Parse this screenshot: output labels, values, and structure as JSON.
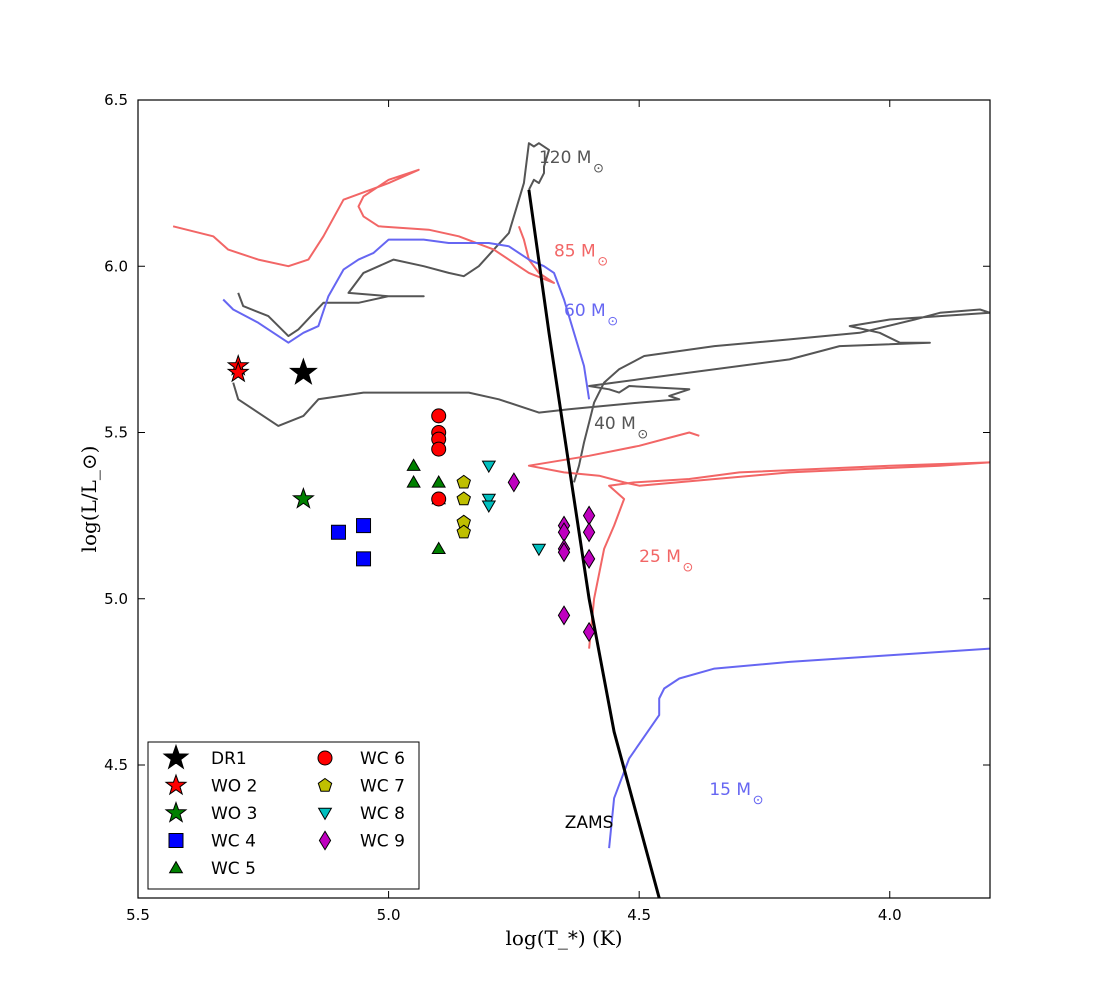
{
  "chart_data": {
    "type": "scatter",
    "title": "",
    "xlabel": "log(T_*) (K)",
    "ylabel": "log(L/L_⊙)",
    "xlim": [
      5.5,
      3.8
    ],
    "ylim": [
      4.1,
      6.5
    ],
    "x_inverted": true,
    "xticks": [
      5.5,
      5.0,
      4.5,
      4.0
    ],
    "xtick_labels": [
      "5.5",
      "5.0",
      "4.5",
      "4.0"
    ],
    "yticks": [
      4.5,
      5.0,
      5.5,
      6.0,
      6.5
    ],
    "ytick_labels": [
      "4.5",
      "5.0",
      "5.5",
      "6.0",
      "6.5"
    ],
    "grid": false,
    "legend_position": "bottom-left",
    "colors": {
      "red_track": "#f26666",
      "blue_track": "#6666f2",
      "gray_track": "#555555",
      "zams": "#000000"
    },
    "series": [
      {
        "name": "DR1",
        "marker": "star",
        "color": "#000000",
        "size": 13,
        "points": [
          [
            5.17,
            5.68
          ]
        ]
      },
      {
        "name": "WO 2",
        "marker": "star",
        "color": "#ff0000",
        "size": 10,
        "points": [
          [
            5.3,
            5.7
          ],
          [
            5.3,
            5.68
          ]
        ]
      },
      {
        "name": "WO 3",
        "marker": "star",
        "color": "#008000",
        "size": 10,
        "points": [
          [
            5.17,
            5.3
          ]
        ]
      },
      {
        "name": "WC 4",
        "marker": "square",
        "color": "#0000ff",
        "size": 7,
        "points": [
          [
            5.1,
            5.2
          ],
          [
            5.05,
            5.22
          ],
          [
            5.05,
            5.12
          ]
        ]
      },
      {
        "name": "WC 5",
        "marker": "triangle-up",
        "color": "#008000",
        "size": 7,
        "points": [
          [
            4.95,
            5.4
          ],
          [
            4.95,
            5.35
          ],
          [
            4.9,
            5.35
          ],
          [
            4.9,
            5.3
          ],
          [
            4.9,
            5.15
          ]
        ]
      },
      {
        "name": "WC 6",
        "marker": "circle",
        "color": "#ff0000",
        "size": 7,
        "points": [
          [
            4.9,
            5.55
          ],
          [
            4.9,
            5.5
          ],
          [
            4.9,
            5.48
          ],
          [
            4.9,
            5.45
          ],
          [
            4.9,
            5.3
          ]
        ]
      },
      {
        "name": "WC 7",
        "marker": "pentagon",
        "color": "#bfbf00",
        "size": 7,
        "points": [
          [
            4.85,
            5.35
          ],
          [
            4.85,
            5.3
          ],
          [
            4.85,
            5.23
          ],
          [
            4.85,
            5.2
          ]
        ]
      },
      {
        "name": "WC 8",
        "marker": "triangle-down",
        "color": "#00bfbf",
        "size": 7,
        "points": [
          [
            4.8,
            5.4
          ],
          [
            4.8,
            5.3
          ],
          [
            4.8,
            5.28
          ],
          [
            4.7,
            5.15
          ]
        ]
      },
      {
        "name": "WC 9",
        "marker": "diamond",
        "color": "#bf00bf",
        "size": 8,
        "points": [
          [
            4.75,
            5.35
          ],
          [
            4.65,
            5.22
          ],
          [
            4.65,
            5.2
          ],
          [
            4.65,
            5.15
          ],
          [
            4.65,
            5.14
          ],
          [
            4.6,
            5.25
          ],
          [
            4.6,
            5.2
          ],
          [
            4.6,
            5.12
          ],
          [
            4.65,
            4.95
          ],
          [
            4.6,
            4.9
          ]
        ]
      }
    ],
    "zams": {
      "label": "ZAMS",
      "points": [
        [
          4.72,
          6.23
        ],
        [
          4.68,
          5.8
        ],
        [
          4.64,
          5.4
        ],
        [
          4.6,
          5.0
        ],
        [
          4.55,
          4.6
        ],
        [
          4.46,
          4.1
        ]
      ]
    },
    "tracks": [
      {
        "label": "120 M",
        "color": "#555555",
        "points": [
          [
            4.72,
            6.23
          ],
          [
            4.71,
            6.26
          ],
          [
            4.7,
            6.25
          ],
          [
            4.69,
            6.28
          ],
          [
            4.69,
            6.3
          ],
          [
            4.68,
            6.35
          ],
          [
            4.7,
            6.37
          ],
          [
            4.71,
            6.36
          ],
          [
            4.72,
            6.37
          ],
          [
            4.73,
            6.25
          ],
          [
            4.76,
            6.1
          ],
          [
            4.79,
            6.05
          ],
          [
            4.82,
            6.0
          ],
          [
            4.85,
            5.97
          ],
          [
            4.88,
            5.98
          ],
          [
            4.93,
            6.0
          ],
          [
            4.99,
            6.02
          ],
          [
            5.05,
            5.98
          ],
          [
            5.08,
            5.92
          ],
          [
            5.0,
            5.91
          ],
          [
            4.93,
            5.91
          ],
          [
            5.0,
            5.91
          ],
          [
            5.06,
            5.89
          ],
          [
            5.13,
            5.89
          ],
          [
            5.18,
            5.81
          ],
          [
            5.2,
            5.79
          ],
          [
            5.24,
            5.85
          ],
          [
            5.29,
            5.88
          ],
          [
            5.3,
            5.92
          ]
        ]
      },
      {
        "label": "85 M",
        "color": "#f26666",
        "points": [
          [
            4.74,
            6.12
          ],
          [
            4.73,
            6.08
          ],
          [
            4.72,
            6.02
          ],
          [
            4.7,
            5.98
          ],
          [
            4.67,
            5.95
          ],
          [
            4.72,
            5.98
          ],
          [
            4.79,
            6.05
          ],
          [
            4.86,
            6.09
          ],
          [
            4.92,
            6.11
          ],
          [
            5.02,
            6.12
          ],
          [
            5.05,
            6.15
          ],
          [
            5.06,
            6.18
          ],
          [
            5.05,
            6.21
          ],
          [
            5.0,
            6.26
          ],
          [
            4.94,
            6.29
          ],
          [
            5.0,
            6.25
          ],
          [
            5.09,
            6.2
          ],
          [
            5.13,
            6.09
          ],
          [
            5.16,
            6.02
          ],
          [
            5.2,
            6.0
          ],
          [
            5.26,
            6.02
          ],
          [
            5.32,
            6.05
          ],
          [
            5.35,
            6.09
          ],
          [
            5.43,
            6.12
          ]
        ]
      },
      {
        "label": "60 M",
        "color": "#6666f2",
        "points": [
          [
            4.6,
            5.6
          ],
          [
            4.61,
            5.7
          ],
          [
            4.63,
            5.8
          ],
          [
            4.65,
            5.9
          ],
          [
            4.67,
            5.98
          ],
          [
            4.69,
            6.0
          ],
          [
            4.72,
            6.02
          ],
          [
            4.76,
            6.06
          ],
          [
            4.8,
            6.07
          ],
          [
            4.88,
            6.07
          ],
          [
            4.93,
            6.08
          ],
          [
            5.0,
            6.08
          ],
          [
            5.03,
            6.04
          ],
          [
            5.06,
            6.02
          ],
          [
            5.09,
            5.99
          ],
          [
            5.12,
            5.91
          ],
          [
            5.14,
            5.82
          ],
          [
            5.17,
            5.8
          ],
          [
            5.2,
            5.77
          ],
          [
            5.26,
            5.83
          ],
          [
            5.31,
            5.87
          ],
          [
            5.33,
            5.9
          ]
        ]
      },
      {
        "label": "40 M",
        "color": "#555555",
        "points": [
          [
            4.63,
            5.35
          ],
          [
            4.62,
            5.4
          ],
          [
            4.61,
            5.47
          ],
          [
            4.6,
            5.53
          ],
          [
            4.59,
            5.59
          ],
          [
            4.57,
            5.65
          ],
          [
            4.54,
            5.69
          ],
          [
            4.49,
            5.73
          ],
          [
            4.35,
            5.76
          ],
          [
            4.2,
            5.78
          ],
          [
            4.06,
            5.8
          ],
          [
            3.95,
            5.84
          ],
          [
            3.9,
            5.86
          ],
          [
            3.82,
            5.87
          ],
          [
            3.8,
            5.86
          ],
          [
            3.9,
            5.85
          ],
          [
            4.0,
            5.84
          ],
          [
            4.08,
            5.82
          ],
          [
            4.02,
            5.8
          ],
          [
            3.98,
            5.77
          ],
          [
            3.92,
            5.77
          ],
          [
            4.1,
            5.76
          ],
          [
            4.2,
            5.72
          ],
          [
            4.5,
            5.66
          ],
          [
            4.6,
            5.64
          ],
          [
            4.56,
            5.63
          ],
          [
            4.54,
            5.62
          ],
          [
            4.52,
            5.64
          ],
          [
            4.4,
            5.63
          ],
          [
            4.44,
            5.61
          ],
          [
            4.42,
            5.6
          ],
          [
            4.5,
            5.59
          ],
          [
            4.64,
            5.57
          ],
          [
            4.7,
            5.56
          ],
          [
            4.78,
            5.6
          ],
          [
            4.84,
            5.62
          ],
          [
            4.92,
            5.62
          ],
          [
            5.05,
            5.62
          ],
          [
            5.14,
            5.6
          ],
          [
            5.17,
            5.55
          ],
          [
            5.22,
            5.52
          ],
          [
            5.3,
            5.6
          ],
          [
            5.31,
            5.65
          ]
        ]
      },
      {
        "label": "25 M",
        "color": "#f26666",
        "points": [
          [
            4.6,
            4.85
          ],
          [
            4.59,
            5.0
          ],
          [
            4.57,
            5.15
          ],
          [
            4.55,
            5.22
          ],
          [
            4.53,
            5.3
          ],
          [
            4.56,
            5.34
          ],
          [
            4.51,
            5.35
          ],
          [
            4.4,
            5.36
          ],
          [
            4.3,
            5.38
          ],
          [
            4.0,
            5.4
          ],
          [
            3.8,
            5.41
          ],
          [
            3.9,
            5.4
          ],
          [
            4.2,
            5.38
          ],
          [
            4.5,
            5.34
          ],
          [
            4.53,
            5.35
          ],
          [
            4.58,
            5.37
          ],
          [
            4.65,
            5.38
          ],
          [
            4.72,
            5.4
          ],
          [
            4.6,
            5.43
          ],
          [
            4.5,
            5.46
          ],
          [
            4.45,
            5.48
          ],
          [
            4.4,
            5.5
          ],
          [
            4.38,
            5.49
          ]
        ]
      },
      {
        "label": "15 M",
        "color": "#6666f2",
        "points": [
          [
            4.56,
            4.25
          ],
          [
            4.55,
            4.4
          ],
          [
            4.52,
            4.52
          ],
          [
            4.46,
            4.65
          ],
          [
            4.46,
            4.7
          ],
          [
            4.45,
            4.73
          ],
          [
            4.42,
            4.76
          ],
          [
            4.35,
            4.79
          ],
          [
            4.2,
            4.81
          ],
          [
            4.0,
            4.83
          ],
          [
            3.8,
            4.85
          ]
        ]
      }
    ]
  }
}
